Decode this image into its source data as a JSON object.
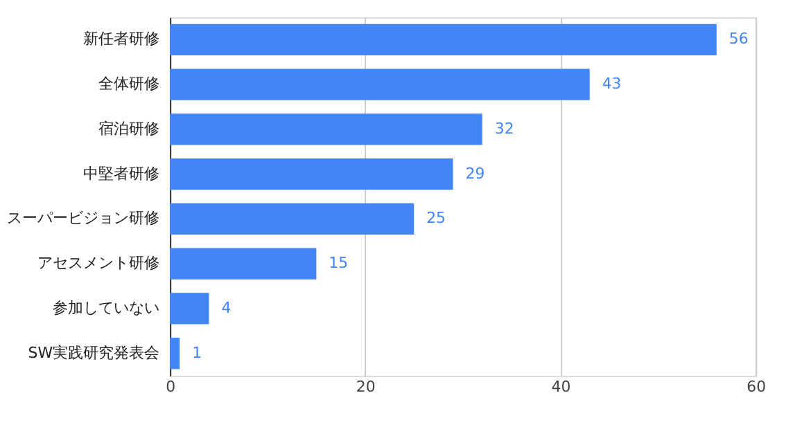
{
  "chart_data": {
    "type": "bar",
    "orientation": "horizontal",
    "categories": [
      "新任者研修",
      "全体研修",
      "宿泊研修",
      "中堅者研修",
      "スーパービジョン研修",
      "アセスメント研修",
      "参加していない",
      "SW実践研究発表会"
    ],
    "values": [
      56,
      43,
      32,
      29,
      25,
      15,
      4,
      1
    ],
    "color": "#4285f4",
    "xlim": [
      0,
      60
    ],
    "xticks": [
      0,
      20,
      40,
      60
    ],
    "grid": "x",
    "data_labels": true
  }
}
